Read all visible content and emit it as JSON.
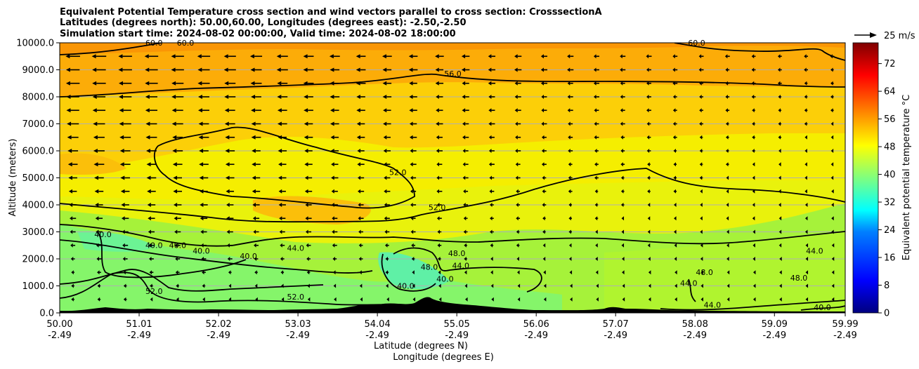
{
  "chart_data": {
    "type": "contour",
    "title_lines": [
      "Equivalent Potential Temperature cross section and wind vectors parallel to cross section: CrosssectionA",
      "Latitudes (degrees north): 50.00,60.00, Longitudes (degrees east): -2.50,-2.50",
      "Simulation start time: 2024-08-02 00:00:00, Valid time: 2024-08-02 18:00:00"
    ],
    "xlabel": "Latitude (degrees N)",
    "xlabel2": "Longitude (degrees E)",
    "ylabel": "Altitude (meters)",
    "x_range": [
      50.0,
      59.99
    ],
    "y_range": [
      0,
      10000
    ],
    "x_ticks": [
      {
        "lat": "50.00",
        "lon": "-2.49",
        "value": 50.0
      },
      {
        "lat": "51.01",
        "lon": "-2.49",
        "value": 51.01
      },
      {
        "lat": "52.02",
        "lon": "-2.49",
        "value": 52.02
      },
      {
        "lat": "53.03",
        "lon": "-2.49",
        "value": 53.03
      },
      {
        "lat": "54.04",
        "lon": "-2.49",
        "value": 54.04
      },
      {
        "lat": "55.05",
        "lon": "-2.49",
        "value": 55.05
      },
      {
        "lat": "56.06",
        "lon": "-2.49",
        "value": 56.06
      },
      {
        "lat": "57.07",
        "lon": "-2.49",
        "value": 57.07
      },
      {
        "lat": "58.08",
        "lon": "-2.49",
        "value": 58.08
      },
      {
        "lat": "59.09",
        "lon": "-2.49",
        "value": 59.09
      },
      {
        "lat": "59.99",
        "lon": "-2.49",
        "value": 59.99
      }
    ],
    "y_ticks": [
      {
        "label": "0.0",
        "value": 0
      },
      {
        "label": "1000.0",
        "value": 1000
      },
      {
        "label": "2000.0",
        "value": 2000
      },
      {
        "label": "3000.0",
        "value": 3000
      },
      {
        "label": "4000.0",
        "value": 4000
      },
      {
        "label": "5000.0",
        "value": 5000
      },
      {
        "label": "6000.0",
        "value": 6000
      },
      {
        "label": "7000.0",
        "value": 7000
      },
      {
        "label": "8000.0",
        "value": 8000
      },
      {
        "label": "9000.0",
        "value": 9000
      },
      {
        "label": "10000.0",
        "value": 10000
      }
    ],
    "colorbar": {
      "label": "Equivalent potential temperature °C",
      "min": 0,
      "max": 78,
      "ticks": [
        0,
        8,
        16,
        24,
        32,
        40,
        48,
        56,
        64,
        72
      ]
    },
    "quiver_key": {
      "label": "25 m/s",
      "speed": 25
    },
    "contour_labels": [
      {
        "text": "60.0",
        "lat": 51.2,
        "alt": 9900
      },
      {
        "text": "60.0",
        "lat": 51.6,
        "alt": 9900
      },
      {
        "text": "56.0",
        "lat": 55.0,
        "alt": 8750
      },
      {
        "text": "60.0",
        "lat": 58.1,
        "alt": 9900
      },
      {
        "text": "52.0",
        "lat": 54.3,
        "alt": 5100
      },
      {
        "text": "52.0",
        "lat": 54.8,
        "alt": 3800
      },
      {
        "text": "40.0",
        "lat": 50.55,
        "alt": 2800
      },
      {
        "text": "40.0",
        "lat": 51.2,
        "alt": 2400
      },
      {
        "text": "40.0",
        "lat": 51.5,
        "alt": 2400
      },
      {
        "text": "40.0",
        "lat": 51.8,
        "alt": 2200
      },
      {
        "text": "40.0",
        "lat": 52.4,
        "alt": 2000
      },
      {
        "text": "44.0",
        "lat": 53.0,
        "alt": 2300
      },
      {
        "text": "48.0",
        "lat": 55.05,
        "alt": 2100
      },
      {
        "text": "44.0",
        "lat": 55.1,
        "alt": 1650
      },
      {
        "text": "48.0",
        "lat": 54.7,
        "alt": 1600
      },
      {
        "text": "40.0",
        "lat": 54.4,
        "alt": 900
      },
      {
        "text": "40.0",
        "lat": 54.9,
        "alt": 1150
      },
      {
        "text": "52.0",
        "lat": 51.2,
        "alt": 700
      },
      {
        "text": "52.0",
        "lat": 53.0,
        "alt": 500
      },
      {
        "text": "48.0",
        "lat": 58.2,
        "alt": 1400
      },
      {
        "text": "44.0",
        "lat": 58.0,
        "alt": 1000
      },
      {
        "text": "44.0",
        "lat": 58.3,
        "alt": 200
      },
      {
        "text": "48.0",
        "lat": 59.4,
        "alt": 1200
      },
      {
        "text": "44.0",
        "lat": 59.6,
        "alt": 2200
      },
      {
        "text": "40.0",
        "lat": 59.7,
        "alt": 100
      }
    ],
    "wind_rows_u": [
      {
        "alt": 500,
        "u": [
          -4,
          -4,
          -4,
          -3,
          -3,
          -3,
          -3,
          -2,
          -2,
          -2,
          -2,
          -2,
          -1,
          -1,
          -1,
          -1,
          -1,
          -1,
          -1,
          -1,
          -1,
          -1,
          -1,
          -1,
          -1,
          -1,
          -1,
          -1,
          -1,
          -1
        ]
      },
      {
        "alt": 1000,
        "u": [
          -4,
          -4,
          -4,
          -4,
          -4,
          -4,
          -3,
          -3,
          -3,
          -3,
          -3,
          -3,
          -3,
          -2,
          -2,
          -2,
          -2,
          -1,
          -1,
          -1,
          -1,
          -1,
          -1,
          -1,
          -1,
          -1,
          -1,
          -1,
          -1,
          -1
        ]
      },
      {
        "alt": 1500,
        "u": [
          -4,
          -5,
          -5,
          -5,
          -5,
          -5,
          -4,
          -4,
          -4,
          -4,
          -4,
          -4,
          -4,
          -3,
          -3,
          -3,
          -3,
          -2,
          -2,
          -2,
          -2,
          -2,
          -1,
          -1,
          -1,
          -1,
          -1,
          -1,
          -1,
          -1
        ]
      },
      {
        "alt": 2000,
        "u": [
          -5,
          -6,
          -6,
          -6,
          -6,
          -6,
          -6,
          -5,
          -5,
          -5,
          -5,
          -5,
          -4,
          -4,
          -4,
          -4,
          -3,
          -3,
          -3,
          -3,
          -3,
          -2,
          -2,
          -2,
          -2,
          -2,
          -2,
          -1,
          -1,
          -1
        ]
      },
      {
        "alt": 2500,
        "u": [
          -6,
          -7,
          -7,
          -7,
          -7,
          -7,
          -7,
          -6,
          -6,
          -6,
          -6,
          -5,
          -5,
          -5,
          -5,
          -4,
          -4,
          -4,
          -3,
          -3,
          -3,
          -3,
          -3,
          -2,
          -2,
          -2,
          -2,
          -2,
          -1,
          -1
        ]
      },
      {
        "alt": 3000,
        "u": [
          -7,
          -8,
          -8,
          -8,
          -8,
          -8,
          -8,
          -7,
          -7,
          -7,
          -7,
          -6,
          -6,
          -6,
          -5,
          -5,
          -5,
          -4,
          -4,
          -4,
          -3,
          -3,
          -3,
          -3,
          -3,
          -2,
          -2,
          -2,
          -2,
          -2
        ]
      },
      {
        "alt": 3500,
        "u": [
          -8,
          -9,
          -9,
          -9,
          -9,
          -9,
          -9,
          -8,
          -8,
          -8,
          -7,
          -7,
          -7,
          -6,
          -6,
          -5,
          -5,
          -5,
          -4,
          -4,
          -4,
          -3,
          -3,
          -3,
          -3,
          -3,
          -3,
          -2,
          -2,
          -2
        ]
      },
      {
        "alt": 4000,
        "u": [
          -9,
          -10,
          -10,
          -10,
          -10,
          -10,
          -9,
          -9,
          -9,
          -8,
          -8,
          -7,
          -7,
          -7,
          -6,
          -6,
          -5,
          -5,
          -5,
          -4,
          -4,
          -4,
          -3,
          -3,
          -3,
          -3,
          -3,
          -3,
          -2,
          -2
        ]
      },
      {
        "alt": 4500,
        "u": [
          -10,
          -11,
          -11,
          -11,
          -11,
          -10,
          -10,
          -10,
          -9,
          -9,
          -8,
          -8,
          -8,
          -7,
          -7,
          -6,
          -6,
          -5,
          -5,
          -5,
          -4,
          -4,
          -4,
          -4,
          -3,
          -3,
          -3,
          -3,
          -3,
          -2
        ]
      },
      {
        "alt": 5000,
        "u": [
          -11,
          -12,
          -12,
          -12,
          -11,
          -11,
          -11,
          -10,
          -10,
          -9,
          -9,
          -8,
          -8,
          -7,
          -7,
          -7,
          -6,
          -6,
          -5,
          -5,
          -5,
          -4,
          -4,
          -4,
          -4,
          -3,
          -3,
          -3,
          -3,
          -3
        ]
      },
      {
        "alt": 5500,
        "u": [
          -12,
          -13,
          -13,
          -12,
          -12,
          -12,
          -11,
          -11,
          -10,
          -10,
          -9,
          -9,
          -8,
          -8,
          -7,
          -7,
          -7,
          -6,
          -6,
          -5,
          -5,
          -5,
          -4,
          -4,
          -4,
          -4,
          -3,
          -3,
          -3,
          -3
        ]
      },
      {
        "alt": 6000,
        "u": [
          -13,
          -14,
          -13,
          -13,
          -13,
          -12,
          -12,
          -11,
          -11,
          -10,
          -10,
          -9,
          -9,
          -8,
          -8,
          -7,
          -7,
          -7,
          -6,
          -6,
          -5,
          -5,
          -5,
          -4,
          -4,
          -4,
          -4,
          -3,
          -3,
          -3
        ]
      },
      {
        "alt": 6500,
        "u": [
          -14,
          -14,
          -14,
          -14,
          -13,
          -13,
          -12,
          -12,
          -11,
          -11,
          -10,
          -10,
          -9,
          -9,
          -8,
          -8,
          -7,
          -7,
          -6,
          -6,
          -6,
          -5,
          -5,
          -5,
          -4,
          -4,
          -4,
          -4,
          -3,
          -3
        ]
      },
      {
        "alt": 7000,
        "u": [
          -15,
          -15,
          -15,
          -14,
          -14,
          -13,
          -13,
          -12,
          -12,
          -11,
          -11,
          -10,
          -10,
          -9,
          -9,
          -8,
          -8,
          -7,
          -7,
          -6,
          -6,
          -6,
          -5,
          -5,
          -5,
          -4,
          -4,
          -4,
          -4,
          -3
        ]
      },
      {
        "alt": 7500,
        "u": [
          -16,
          -16,
          -15,
          -15,
          -14,
          -14,
          -13,
          -13,
          -12,
          -12,
          -11,
          -11,
          -10,
          -10,
          -9,
          -9,
          -8,
          -8,
          -7,
          -7,
          -6,
          -6,
          -6,
          -5,
          -5,
          -5,
          -4,
          -4,
          -4,
          -4
        ]
      },
      {
        "alt": 8000,
        "u": [
          -16,
          -16,
          -16,
          -15,
          -15,
          -14,
          -14,
          -13,
          -13,
          -12,
          -12,
          -11,
          -11,
          -10,
          -9,
          -9,
          -8,
          -8,
          -7,
          -7,
          -7,
          -6,
          -6,
          -5,
          -5,
          -5,
          -5,
          -4,
          -4,
          -4
        ]
      },
      {
        "alt": 8500,
        "u": [
          -17,
          -17,
          -16,
          -16,
          -15,
          -15,
          -14,
          -14,
          -13,
          -13,
          -12,
          -12,
          -11,
          -10,
          -10,
          -9,
          -9,
          -8,
          -8,
          -7,
          -7,
          -6,
          -6,
          -6,
          -5,
          -5,
          -5,
          -5,
          -4,
          -4
        ]
      },
      {
        "alt": 9000,
        "u": [
          -17,
          -17,
          -17,
          -16,
          -16,
          -15,
          -15,
          -14,
          -14,
          -13,
          -12,
          -12,
          -11,
          -11,
          -10,
          -10,
          -9,
          -9,
          -8,
          -8,
          -7,
          -7,
          -6,
          -6,
          -6,
          -5,
          -5,
          -5,
          -5,
          -4
        ]
      },
      {
        "alt": 9500,
        "u": [
          -18,
          -18,
          -17,
          -17,
          -16,
          -16,
          -15,
          -15,
          -14,
          -13,
          -13,
          -12,
          -12,
          -11,
          -11,
          -10,
          -9,
          -9,
          -8,
          -8,
          -7,
          -7,
          -7,
          -6,
          -6,
          -6,
          -5,
          -5,
          -5,
          -5
        ]
      }
    ],
    "colors": {
      "background": "#ffffff",
      "contour_line": "#000000",
      "terrain": "#000000",
      "grid": "#b0b0b0"
    }
  }
}
